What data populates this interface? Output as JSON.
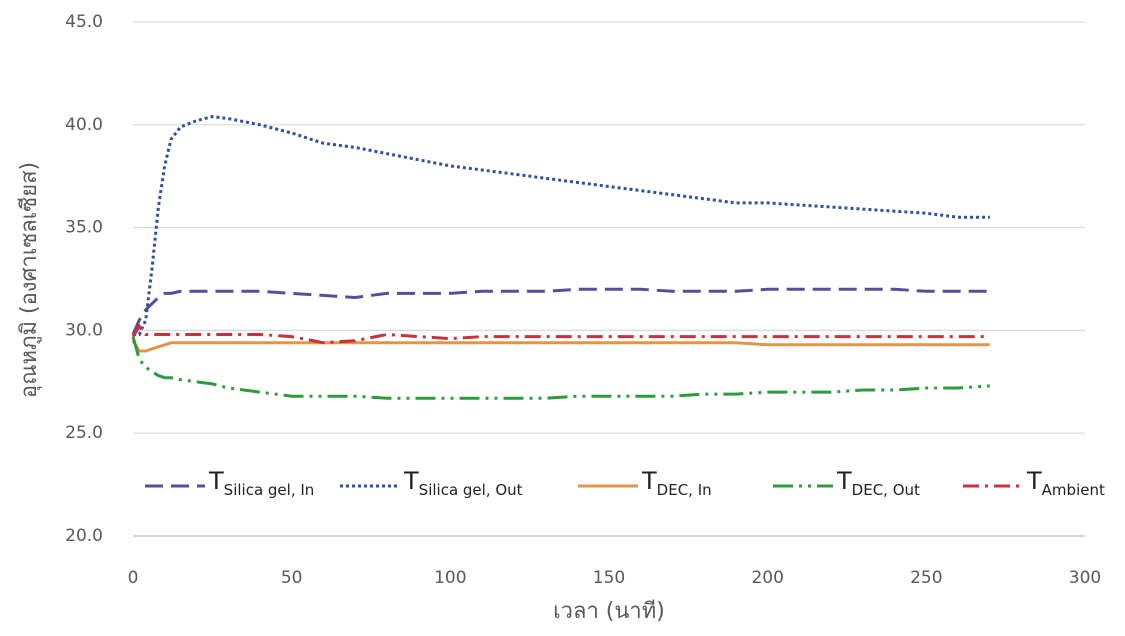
{
  "chart_data": {
    "type": "line",
    "xlabel": "เวลา (นาที)",
    "ylabel": "อุณหภูมิ (องศาเซลเซียส)",
    "x": [
      0,
      2,
      4,
      6,
      8,
      10,
      12,
      15,
      20,
      25,
      30,
      40,
      50,
      60,
      70,
      80,
      90,
      100,
      110,
      120,
      130,
      140,
      150,
      160,
      170,
      180,
      190,
      200,
      210,
      220,
      230,
      240,
      250,
      260,
      270
    ],
    "series": [
      {
        "name": "TSilica gel, In",
        "color": "#5b4b9c",
        "dash": "18,8",
        "values": [
          29.8,
          30.5,
          31.0,
          31.3,
          31.6,
          31.8,
          31.8,
          31.9,
          31.9,
          31.9,
          31.9,
          31.9,
          31.8,
          31.7,
          31.6,
          31.8,
          31.8,
          31.8,
          31.9,
          31.9,
          31.9,
          32.0,
          32.0,
          32.0,
          31.9,
          31.9,
          31.9,
          32.0,
          32.0,
          32.0,
          32.0,
          32.0,
          31.9,
          31.9,
          31.9
        ]
      },
      {
        "name": "TSilica gel, Out",
        "color": "#2f4f9f",
        "dash": "3,3",
        "values": [
          29.8,
          29.8,
          30.5,
          33.0,
          36.0,
          38.0,
          39.3,
          39.9,
          40.2,
          40.4,
          40.3,
          40.0,
          39.6,
          39.1,
          38.9,
          38.6,
          38.3,
          38.0,
          37.8,
          37.6,
          37.4,
          37.2,
          37.0,
          36.8,
          36.6,
          36.4,
          36.2,
          36.2,
          36.1,
          36.0,
          35.9,
          35.8,
          35.7,
          35.5,
          35.5
        ]
      },
      {
        "name": "TDEC, In",
        "color": "#e0954a",
        "dash": "none",
        "values": [
          29.5,
          29.0,
          29.0,
          29.1,
          29.2,
          29.3,
          29.4,
          29.4,
          29.4,
          29.4,
          29.4,
          29.4,
          29.4,
          29.4,
          29.4,
          29.4,
          29.4,
          29.4,
          29.4,
          29.4,
          29.4,
          29.4,
          29.4,
          29.4,
          29.4,
          29.4,
          29.4,
          29.3,
          29.3,
          29.3,
          29.3,
          29.3,
          29.3,
          29.3,
          29.3
        ]
      },
      {
        "name": "TDEC, Out",
        "color": "#2e9a3f",
        "dash": "20,6,3,6,3,6",
        "values": [
          29.7,
          28.6,
          28.2,
          28.0,
          27.8,
          27.7,
          27.7,
          27.6,
          27.5,
          27.4,
          27.2,
          27.0,
          26.8,
          26.8,
          26.8,
          26.7,
          26.7,
          26.7,
          26.7,
          26.7,
          26.7,
          26.8,
          26.8,
          26.8,
          26.8,
          26.9,
          26.9,
          27.0,
          27.0,
          27.0,
          27.1,
          27.1,
          27.2,
          27.2,
          27.3
        ]
      },
      {
        "name": "TAmbient",
        "color": "#c8323c",
        "dash": "16,6,3,6",
        "values": [
          29.7,
          30.2,
          29.8,
          29.8,
          29.8,
          29.8,
          29.8,
          29.8,
          29.8,
          29.8,
          29.8,
          29.8,
          29.7,
          29.4,
          29.5,
          29.8,
          29.7,
          29.6,
          29.7,
          29.7,
          29.7,
          29.7,
          29.7,
          29.7,
          29.7,
          29.7,
          29.7,
          29.7,
          29.7,
          29.7,
          29.7,
          29.7,
          29.7,
          29.7,
          29.7
        ]
      }
    ],
    "xlim": [
      0,
      300
    ],
    "xticks": [
      0,
      50,
      100,
      150,
      200,
      250,
      300
    ],
    "ylim": [
      20,
      45
    ],
    "yticks": [
      {
        "value": 20,
        "label": "20.0"
      },
      {
        "value": 25,
        "label": "25.0"
      },
      {
        "value": 30,
        "label": "30.0"
      },
      {
        "value": 35,
        "label": "35.0"
      },
      {
        "value": 40,
        "label": "40.0"
      },
      {
        "value": 45,
        "label": "45.0"
      }
    ],
    "grid": true
  }
}
